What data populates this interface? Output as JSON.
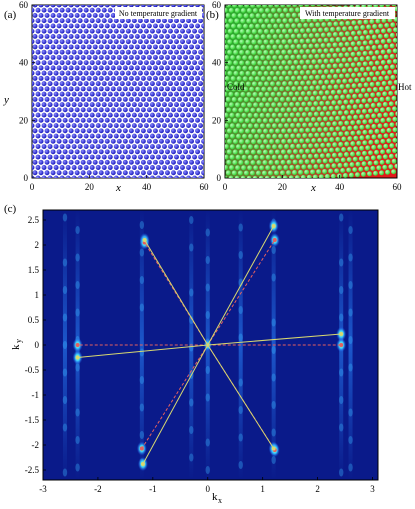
{
  "panel_a": {
    "letter": "(a)",
    "label": "No temperature gradient",
    "xlabel": "x",
    "ylabel": "y",
    "xticks": [
      "0",
      "20",
      "40",
      "60"
    ],
    "yticks": [
      "0",
      "20",
      "40",
      "60"
    ],
    "colors": {
      "atom": "#1a1acc",
      "background": "#ffffff"
    }
  },
  "panel_b": {
    "letter": "(b)",
    "label": "With temperature gradient",
    "xlabel": "x",
    "xticks": [
      "0",
      "20",
      "40",
      "60"
    ],
    "yticks": [
      "0",
      "20",
      "40",
      "60"
    ],
    "left_text": "Cold",
    "right_text": "Hot",
    "colors": {
      "atom": "#3ee83e",
      "cold": "#2ea82e",
      "hot": "#e21a1a"
    }
  },
  "panel_c": {
    "letter": "(c)",
    "xlabel": "k",
    "xlabel_sub": "x",
    "ylabel": "k",
    "ylabel_sub": "y",
    "xticks": [
      "-3",
      "-2",
      "-1",
      "0",
      "1",
      "2",
      "3"
    ],
    "yticks": [
      "2.5",
      "2",
      "1.5",
      "1",
      "0.5",
      "0",
      "-0.5",
      "-1",
      "-1.5",
      "-2",
      "-2.5"
    ],
    "colors": {
      "background": "#0a1a8a",
      "solid_line": "#d8d870",
      "dashed_line": "#e46060"
    }
  },
  "chart_data": [
    {
      "type": "scatter",
      "xlim": [
        0,
        60
      ],
      "ylim": [
        0,
        60
      ],
      "series": [
        {
          "name": "",
          "lattice": "triangular",
          "spacing": 2.1
        }
      ]
    },
    {
      "type": "scatter",
      "xlim": [
        0,
        60
      ],
      "ylim": [
        0,
        60
      ],
      "series": [
        {
          "name": "",
          "lattice": "triangular-distorted",
          "spacing": 2.1
        }
      ]
    },
    {
      "type": "heatmap",
      "xlim": [
        -3,
        3.1
      ],
      "ylim": [
        -2.7,
        2.7
      ],
      "peaks_solid": [
        {
          "x": 1.2,
          "y": 2.38
        },
        {
          "x": -1.15,
          "y": 2.1
        },
        {
          "x": 2.43,
          "y": 0.22
        },
        {
          "x": -2.37,
          "y": -0.25
        },
        {
          "x": -1.18,
          "y": -2.38
        },
        {
          "x": 1.2,
          "y": -2.07
        }
      ],
      "peaks_dashed": [
        {
          "x": 1.22,
          "y": 2.1
        },
        {
          "x": -1.15,
          "y": 2.05
        },
        {
          "x": 2.43,
          "y": 0.0
        },
        {
          "x": -2.37,
          "y": 0.0
        },
        {
          "x": -1.2,
          "y": -2.07
        },
        {
          "x": 1.22,
          "y": -2.1
        }
      ],
      "streaks_x": [
        -2.6,
        -2.37,
        -1.2,
        -0.3,
        0,
        0.6,
        1.2,
        2.43,
        2.6
      ]
    }
  ]
}
